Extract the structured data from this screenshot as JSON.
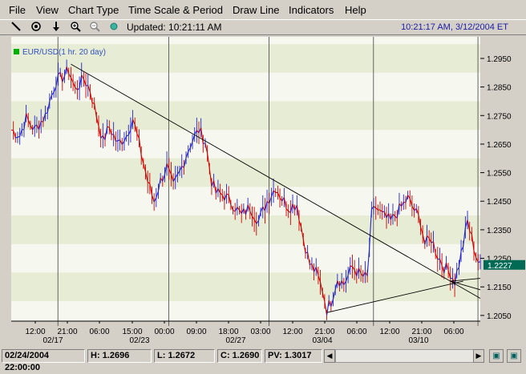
{
  "menu": [
    "File",
    "View",
    "Chart Type",
    "Time Scale & Period",
    "Draw Line",
    "Indicators",
    "Help"
  ],
  "toolbar": {
    "updated": "Updated: 10:21:11 AM",
    "clock": "10:21:17 AM, 3/12/2004 ET",
    "icons": [
      "draw-line-icon",
      "target-icon",
      "arrow-down-icon",
      "zoom-in-icon",
      "zoom-out-icon",
      "globe-icon"
    ]
  },
  "chart_data": {
    "type": "line",
    "legend": "EUR/USD(1 hr. 20 day)",
    "legend_color": "#00b000",
    "up_color": "#2222cc",
    "down_color": "#cc0000",
    "ylim": [
      1.203,
      1.302
    ],
    "yticks": [
      1.295,
      1.285,
      1.275,
      1.265,
      1.255,
      1.245,
      1.235,
      1.225,
      1.215,
      1.205
    ],
    "yticklabels": [
      "1.2950",
      "1.2850",
      "1.2750",
      "1.2650",
      "1.2550",
      "1.2450",
      "1.2350",
      "1.2250",
      "1.2150",
      "1.2050"
    ],
    "last_price": "1.2227",
    "last_value": 1.2227,
    "xtick_labels": [
      "12:00",
      "21:00",
      "06:00",
      "15:00",
      "00:00",
      "09:00",
      "18:00",
      "03:00",
      "12:00",
      "21:00",
      "06:00",
      "12:00",
      "21:00",
      "06:00"
    ],
    "date_labels": [
      "02/17",
      "02/23",
      "02/27",
      "03/04",
      "03/10"
    ],
    "anchors": [
      [
        0,
        1.27
      ],
      [
        4,
        1.268
      ],
      [
        7,
        1.274
      ],
      [
        11,
        1.27
      ],
      [
        16,
        1.275
      ],
      [
        21,
        1.287
      ],
      [
        25,
        1.289
      ],
      [
        27,
        1.291
      ],
      [
        30,
        1.284
      ],
      [
        34,
        1.288
      ],
      [
        37,
        1.284
      ],
      [
        40,
        1.275
      ],
      [
        43,
        1.266
      ],
      [
        46,
        1.271
      ],
      [
        50,
        1.265
      ],
      [
        54,
        1.268
      ],
      [
        57,
        1.274
      ],
      [
        60,
        1.265
      ],
      [
        64,
        1.252
      ],
      [
        67,
        1.245
      ],
      [
        70,
        1.252
      ],
      [
        73,
        1.257
      ],
      [
        76,
        1.25
      ],
      [
        79,
        1.255
      ],
      [
        84,
        1.265
      ],
      [
        88,
        1.27
      ],
      [
        91,
        1.266
      ],
      [
        94,
        1.252
      ],
      [
        96,
        1.248
      ],
      [
        100,
        1.247
      ],
      [
        104,
        1.244
      ],
      [
        108,
        1.24
      ],
      [
        112,
        1.243
      ],
      [
        116,
        1.238
      ],
      [
        120,
        1.245
      ],
      [
        124,
        1.25
      ],
      [
        127,
        1.246
      ],
      [
        130,
        1.243
      ],
      [
        134,
        1.244
      ],
      [
        137,
        1.232
      ],
      [
        140,
        1.223
      ],
      [
        143,
        1.22
      ],
      [
        146,
        1.214
      ],
      [
        148,
        1.207
      ],
      [
        150,
        1.21
      ],
      [
        153,
        1.218
      ],
      [
        156,
        1.216
      ],
      [
        160,
        1.222
      ],
      [
        164,
        1.219
      ],
      [
        167,
        1.218
      ],
      [
        169,
        1.24
      ],
      [
        171,
        1.243
      ],
      [
        174,
        1.24
      ],
      [
        178,
        1.238
      ],
      [
        182,
        1.242
      ],
      [
        186,
        1.246
      ],
      [
        189,
        1.242
      ],
      [
        192,
        1.238
      ],
      [
        194,
        1.23
      ],
      [
        197,
        1.232
      ],
      [
        200,
        1.226
      ],
      [
        203,
        1.222
      ],
      [
        206,
        1.22
      ],
      [
        208,
        1.217
      ],
      [
        210,
        1.223
      ],
      [
        212,
        1.23
      ],
      [
        214,
        1.238
      ],
      [
        216,
        1.232
      ],
      [
        218,
        1.226
      ],
      [
        220,
        1.222
      ]
    ],
    "trendlines": [
      {
        "from": [
          28,
          1.293
        ],
        "to": [
          220,
          1.211
        ]
      },
      {
        "from": [
          148,
          1.206
        ],
        "to": [
          212,
          1.217
        ]
      },
      {
        "from": [
          206,
          1.217
        ],
        "to": [
          220,
          1.218
        ]
      },
      {
        "from": [
          206,
          1.217
        ],
        "to": [
          220,
          1.214
        ]
      }
    ]
  },
  "status": {
    "datetime": "02/24/2004 22:00:00",
    "high": "H: 1.2696",
    "low": "L: 1.2672",
    "close": "C: 1.2690",
    "pv": "PV: 1.3017"
  }
}
